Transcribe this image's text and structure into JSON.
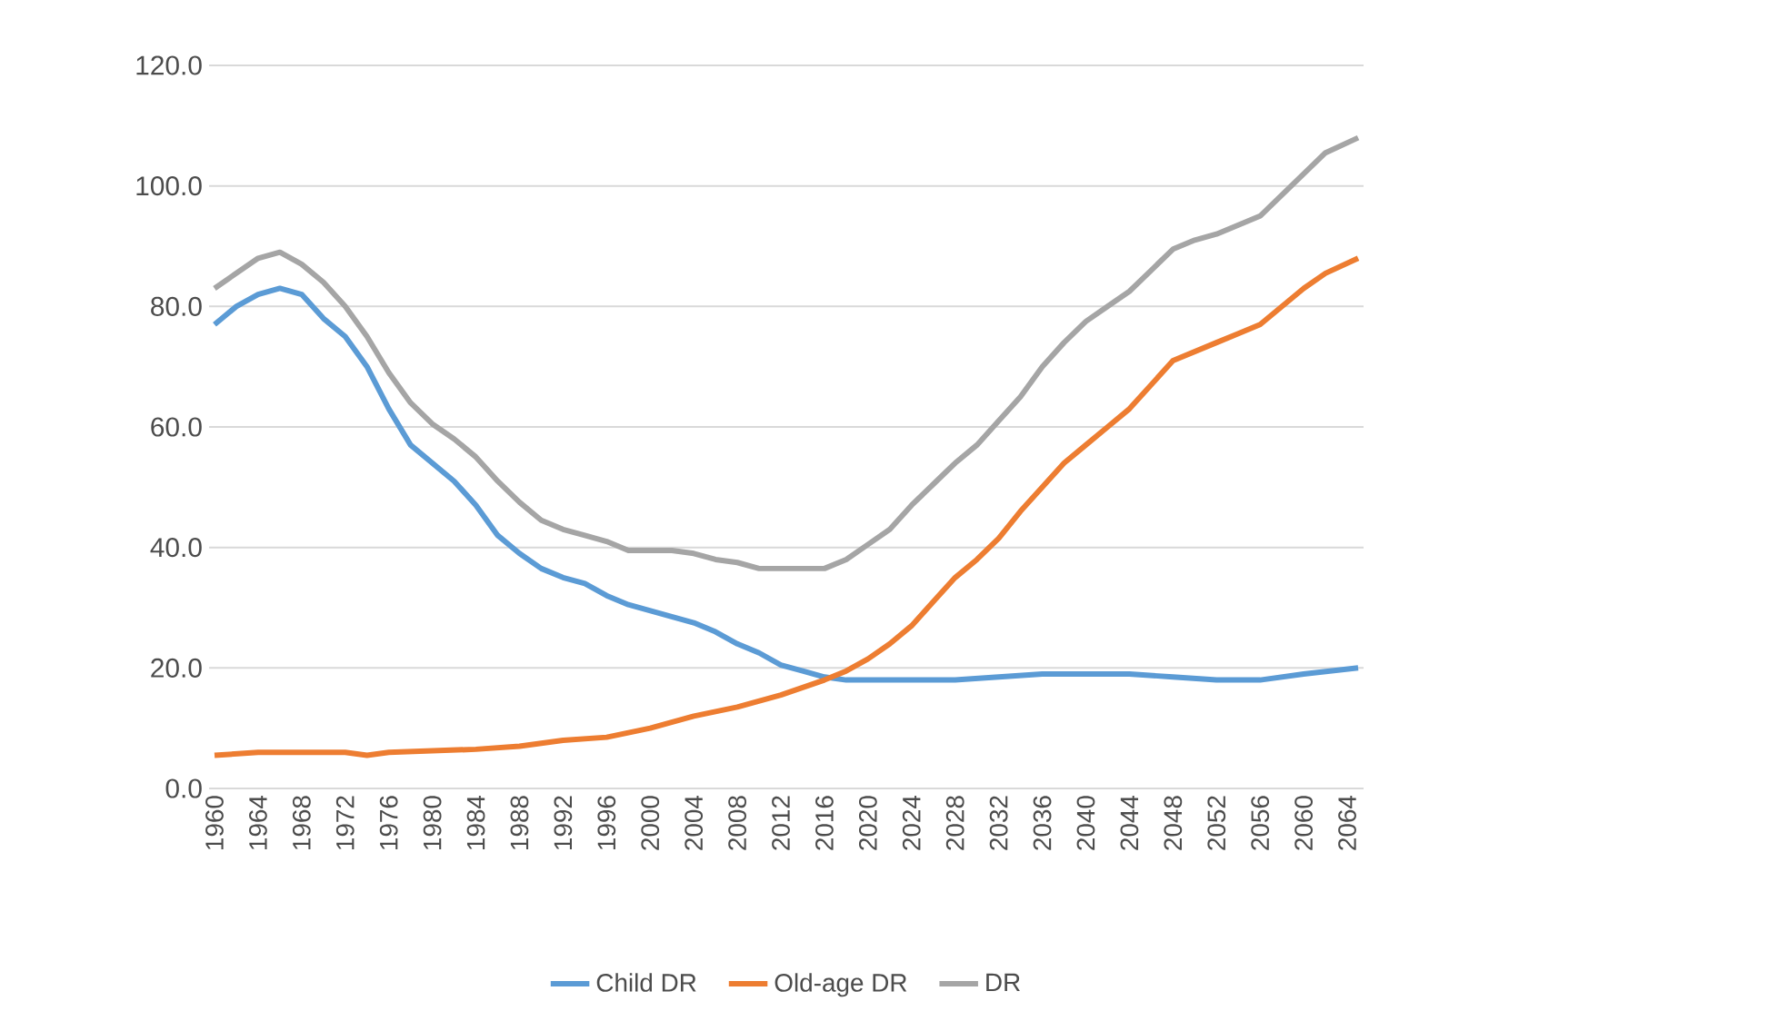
{
  "chart_data": {
    "type": "line",
    "xlim": [
      1959.5,
      2065.5
    ],
    "xticks": [
      1960,
      1964,
      1968,
      1972,
      1976,
      1980,
      1984,
      1988,
      1992,
      1996,
      2000,
      2004,
      2008,
      2012,
      2016,
      2020,
      2024,
      2028,
      2032,
      2036,
      2040,
      2044,
      2048,
      2052,
      2056,
      2060,
      2064
    ],
    "ylim": [
      0,
      120
    ],
    "yticks": [
      {
        "value": 0,
        "label": "0.0"
      },
      {
        "value": 20,
        "label": "20.0"
      },
      {
        "value": 40,
        "label": "40.0"
      },
      {
        "value": 60,
        "label": "60.0"
      },
      {
        "value": 80,
        "label": "80.0"
      },
      {
        "value": 100,
        "label": "100.0"
      },
      {
        "value": 120,
        "label": "120.0"
      }
    ],
    "grid": "y",
    "legend": "bottom",
    "marker": "none",
    "line_style": "solid",
    "series": [
      {
        "name": "Child DR",
        "color": "#5b9bd5",
        "x": [
          1960,
          1962,
          1964,
          1966,
          1968,
          1970,
          1972,
          1974,
          1976,
          1978,
          1980,
          1982,
          1984,
          1986,
          1988,
          1990,
          1992,
          1994,
          1996,
          1998,
          2000,
          2002,
          2004,
          2006,
          2008,
          2010,
          2012,
          2014,
          2016,
          2018,
          2020,
          2024,
          2028,
          2032,
          2036,
          2040,
          2044,
          2048,
          2052,
          2056,
          2060,
          2065
        ],
        "values": [
          77,
          80,
          82,
          83,
          82,
          78,
          75,
          70,
          63,
          57,
          54,
          51,
          47,
          42,
          39,
          36.5,
          35,
          34,
          32,
          30.5,
          29.5,
          28.5,
          27.5,
          26,
          24,
          22.5,
          20.5,
          19.5,
          18.5,
          18,
          18,
          18,
          18,
          18.5,
          19,
          19,
          19,
          18.5,
          18,
          18,
          19,
          20
        ]
      },
      {
        "name": "Old-age DR",
        "color": "#ed7d31",
        "x": [
          1960,
          1964,
          1968,
          1972,
          1974,
          1976,
          1984,
          1988,
          1992,
          1996,
          2000,
          2004,
          2008,
          2012,
          2016,
          2018,
          2020,
          2022,
          2024,
          2026,
          2028,
          2030,
          2032,
          2034,
          2036,
          2038,
          2040,
          2042,
          2044,
          2046,
          2048,
          2050,
          2052,
          2054,
          2056,
          2058,
          2060,
          2062,
          2065
        ],
        "values": [
          5.5,
          6,
          6,
          6,
          5.5,
          6,
          6.5,
          7,
          8,
          8.5,
          10,
          12,
          13.5,
          15.5,
          18,
          19.5,
          21.5,
          24,
          27,
          31,
          35,
          38,
          41.5,
          46,
          50,
          54,
          57,
          60,
          63,
          67,
          71,
          72.5,
          74,
          75.5,
          77,
          80,
          83,
          85.5,
          88
        ]
      },
      {
        "name": "DR",
        "color": "#a5a5a5",
        "x": [
          1960,
          1962,
          1964,
          1966,
          1968,
          1970,
          1972,
          1974,
          1976,
          1978,
          1980,
          1982,
          1984,
          1986,
          1988,
          1990,
          1992,
          1994,
          1996,
          1998,
          2000,
          2002,
          2004,
          2006,
          2008,
          2010,
          2012,
          2014,
          2016,
          2018,
          2020,
          2022,
          2024,
          2026,
          2028,
          2030,
          2032,
          2034,
          2036,
          2038,
          2040,
          2042,
          2044,
          2046,
          2048,
          2050,
          2052,
          2054,
          2056,
          2058,
          2060,
          2062,
          2065
        ],
        "values": [
          83,
          85.5,
          88,
          89,
          87,
          84,
          80,
          75,
          69,
          64,
          60.5,
          58,
          55,
          51,
          47.5,
          44.5,
          43,
          42,
          41,
          39.5,
          39.5,
          39.5,
          39,
          38,
          37.5,
          36.5,
          36.5,
          36.5,
          36.5,
          38,
          40.5,
          43,
          47,
          50.5,
          54,
          57,
          61,
          65,
          70,
          74,
          77.5,
          80,
          82.5,
          86,
          89.5,
          91,
          92,
          93.5,
          95,
          98.5,
          102,
          105.5,
          108
        ]
      }
    ]
  }
}
